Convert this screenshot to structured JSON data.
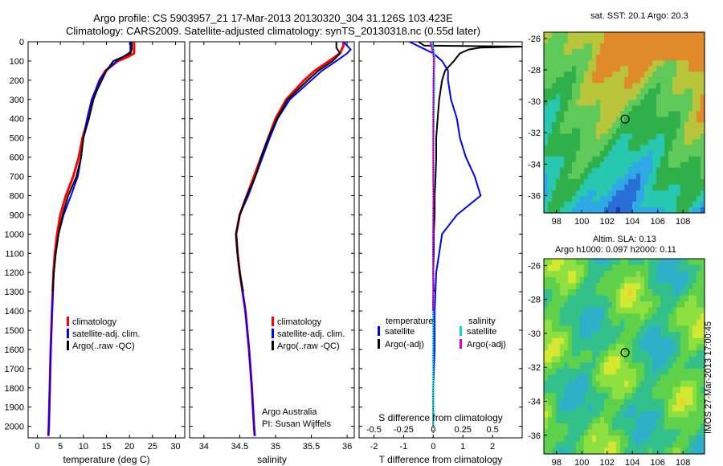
{
  "title_line1": "Argo profile: CS 5903957_21 17-Mar-2013 20130320_304 31.126S 103.423E",
  "title_line2": "Climatology: CARS2009. Satellite-adjusted climatology: synTS_20130318.nc (0.55d later)",
  "watermark": "IMOS 27-Mar-2013 17:00:45",
  "chart_data": [
    {
      "type": "line",
      "name": "temperature-panel",
      "xlabel": "temperature (deg C)",
      "xlim": [
        -2,
        32
      ],
      "ylim": [
        2060,
        0
      ],
      "xticks": [
        0,
        5,
        10,
        15,
        20,
        25,
        30
      ],
      "yticks": [
        0,
        100,
        200,
        300,
        400,
        500,
        600,
        700,
        800,
        900,
        1000,
        1100,
        1200,
        1300,
        1400,
        1500,
        1600,
        1700,
        1800,
        1900,
        2000
      ],
      "legend": [
        "climatology",
        "satellite-adj. clim.",
        "Argo(..raw -QC)"
      ],
      "colors": [
        "#ff0000",
        "#0000ff",
        "#000000"
      ],
      "series": [
        {
          "name": "climatology",
          "color": "#ff0000",
          "depth": [
            0,
            60,
            80,
            100,
            150,
            200,
            300,
            400,
            500,
            600,
            700,
            800,
            900,
            1000,
            1100,
            1200,
            1400,
            1600,
            1800,
            2000,
            2050
          ],
          "values": [
            21,
            21,
            19.5,
            17.5,
            14.8,
            13.5,
            12,
            11,
            9.8,
            9,
            7.8,
            6.2,
            5,
            4.3,
            3.8,
            3.5,
            3.2,
            2.9,
            2.7,
            2.5,
            2.4
          ]
        },
        {
          "name": "satellite-adj. clim.",
          "color": "#0000ff",
          "depth": [
            0,
            50,
            60,
            80,
            100,
            150,
            200,
            300,
            400,
            500,
            600,
            700,
            800,
            900,
            1000,
            1100,
            1200,
            1400,
            1600,
            1800,
            2000,
            2050
          ],
          "values": [
            20.2,
            20.2,
            19.8,
            18.5,
            17.2,
            15,
            13.5,
            11.8,
            10.8,
            10,
            9.5,
            8.8,
            7.3,
            5.7,
            4.6,
            4,
            3.6,
            3.2,
            2.9,
            2.7,
            2.5,
            2.4
          ]
        },
        {
          "name": "Argo(..raw -QC)",
          "color": "#000000",
          "depth": [
            0,
            40,
            60,
            80,
            100,
            150,
            200,
            250,
            300,
            400,
            500,
            600,
            700,
            800,
            900,
            1000,
            1100,
            1200,
            1300
          ],
          "values": [
            20.5,
            20.5,
            20.2,
            18.5,
            16.5,
            15,
            14,
            13,
            12.2,
            11.2,
            10,
            9.5,
            8.5,
            6.7,
            5.5,
            4.6,
            4,
            3.6,
            3.3
          ]
        }
      ]
    },
    {
      "type": "line",
      "name": "salinity-panel",
      "xlabel": "salinity",
      "xlim": [
        33.8,
        36.1
      ],
      "ylim": [
        2060,
        0
      ],
      "xticks": [
        34,
        34.5,
        35,
        35.5,
        36
      ],
      "legend": [
        "climatology",
        "satellite-adj. clim.",
        "Argo(..raw -QC)"
      ],
      "annotation": [
        "Argo Australia",
        "PI: Susan Wijffels"
      ],
      "series": [
        {
          "name": "climatology",
          "color": "#ff0000",
          "depth": [
            0,
            20,
            60,
            100,
            150,
            200,
            300,
            400,
            500,
            600,
            700,
            800,
            900,
            1000,
            1100,
            1200,
            1400,
            1600,
            1800,
            2000,
            2050
          ],
          "values": [
            35.95,
            35.95,
            35.9,
            35.75,
            35.55,
            35.4,
            35.15,
            35,
            34.9,
            34.8,
            34.7,
            34.6,
            34.5,
            34.45,
            34.47,
            34.5,
            34.58,
            34.63,
            34.67,
            34.7,
            34.71
          ]
        },
        {
          "name": "satellite-adj. clim.",
          "color": "#0000ff",
          "depth": [
            0,
            20,
            40,
            60,
            100,
            150,
            200,
            300,
            400,
            500,
            600,
            700,
            800,
            900,
            1000,
            1100,
            1200,
            1400,
            1600,
            1800,
            2000,
            2050
          ],
          "values": [
            35.95,
            36,
            36.05,
            36,
            35.85,
            35.65,
            35.5,
            35.2,
            35.03,
            34.92,
            34.82,
            34.72,
            34.62,
            34.5,
            34.45,
            34.47,
            34.5,
            34.58,
            34.63,
            34.67,
            34.7,
            34.71
          ]
        },
        {
          "name": "Argo(..raw -QC)",
          "color": "#000000",
          "depth": [
            0,
            30,
            60,
            100,
            150,
            200,
            300,
            400,
            500,
            600,
            700,
            800,
            900,
            1000,
            1100,
            1200,
            1300
          ],
          "values": [
            35.85,
            35.85,
            35.9,
            35.8,
            35.6,
            35.45,
            35.17,
            35.02,
            34.9,
            34.8,
            34.72,
            34.6,
            34.5,
            34.45,
            34.47,
            34.5,
            34.55
          ]
        }
      ]
    },
    {
      "type": "line",
      "name": "difference-panel",
      "xlabel": "T difference from climatology",
      "xlabel2": "S difference from climatology",
      "xlim": [
        -2.5,
        3
      ],
      "ylim": [
        2060,
        0
      ],
      "xticks": [
        -2,
        -1,
        0,
        1,
        2
      ],
      "xticks_top": [
        -0.5,
        -0.25,
        0,
        0.25,
        0.5
      ],
      "xtick_labels_top": [
        "-0.5",
        "-0.25",
        "0",
        "0.25",
        "0.5"
      ],
      "legend_headers": [
        "temperature",
        "salinity"
      ],
      "legend": [
        "satellite",
        "Argo(-adj)",
        "satellite",
        "Argo(-adj)"
      ],
      "series": [
        {
          "name": "temperature satellite",
          "color": "#0000ff",
          "depth": [
            0,
            30,
            60,
            100,
            150,
            200,
            300,
            400,
            500,
            600,
            700,
            800,
            900,
            1000,
            1100,
            1200,
            1400,
            1600,
            1800,
            2000
          ],
          "values": [
            -0.8,
            -0.4,
            0,
            0.3,
            0.5,
            0.5,
            0.6,
            0.8,
            0.9,
            1.1,
            1.4,
            1.6,
            0.8,
            0.3,
            0.2,
            0.1,
            0.05,
            0.05,
            0,
            0
          ]
        },
        {
          "name": "temperature Argo(-adj)",
          "color": "#000000",
          "depth": [
            0,
            20,
            25,
            30,
            40,
            60,
            80,
            100,
            150,
            200,
            300,
            400,
            500,
            600,
            700,
            800,
            900,
            1000,
            1100,
            1200,
            1300
          ],
          "values": [
            -0.5,
            -0.3,
            3,
            1.6,
            1.2,
            0.9,
            0.8,
            0.7,
            0.4,
            0.3,
            0.2,
            0.15,
            0.1,
            0.1,
            0.08,
            0.05,
            0.05,
            0.02,
            0.02,
            0,
            0.02
          ]
        },
        {
          "name": "salinity satellite",
          "color": "#00dddd",
          "depth": [
            0,
            30,
            60,
            100,
            150,
            200,
            300,
            400,
            500,
            600,
            700,
            800,
            900,
            1000,
            1100,
            1200,
            1400,
            1600,
            1800,
            2000
          ],
          "values": [
            -0.05,
            0,
            0.04,
            0.04,
            0.03,
            0.04,
            0.03,
            0.02,
            0.01,
            0.01,
            0.01,
            0.01,
            0,
            0,
            -0.01,
            0,
            0,
            0,
            0,
            0
          ]
        },
        {
          "name": "salinity Argo(-adj)",
          "color": "#dd00dd",
          "depth": [
            0,
            30,
            60,
            100,
            150,
            200,
            300,
            400,
            500,
            600,
            700,
            800,
            900,
            1000,
            1100,
            1200,
            1300,
            1400
          ],
          "values": [
            -0.1,
            -0.05,
            0,
            0.03,
            0.02,
            0.01,
            0.005,
            0,
            0,
            0,
            0,
            0.005,
            0.005,
            0,
            0,
            0,
            0,
            -0.01
          ]
        }
      ]
    },
    {
      "type": "heatmap",
      "name": "sst-map",
      "title": "sat. SST: 20.1  Argo: 20.3",
      "xticks": [
        98,
        100,
        102,
        104,
        106,
        108
      ],
      "yticks": [
        -26,
        -28,
        -30,
        -32,
        -34,
        -36
      ],
      "xlim": [
        97,
        109.7
      ],
      "ylim": [
        -37.1,
        -25.6
      ],
      "marker": [
        103.42,
        -31.13
      ]
    },
    {
      "type": "heatmap",
      "name": "sla-map",
      "title_line1": "Altim. SLA: 0.13",
      "title_line2": "Argo h1000: 0.097 h2000: 0.11",
      "xticks": [
        98,
        100,
        102,
        104,
        106,
        108
      ],
      "yticks": [
        -26,
        -28,
        -30,
        -32,
        -34,
        -36
      ],
      "xlim": [
        97,
        109.7
      ],
      "ylim": [
        -37.1,
        -25.6
      ],
      "marker": [
        103.42,
        -31.13
      ]
    }
  ]
}
